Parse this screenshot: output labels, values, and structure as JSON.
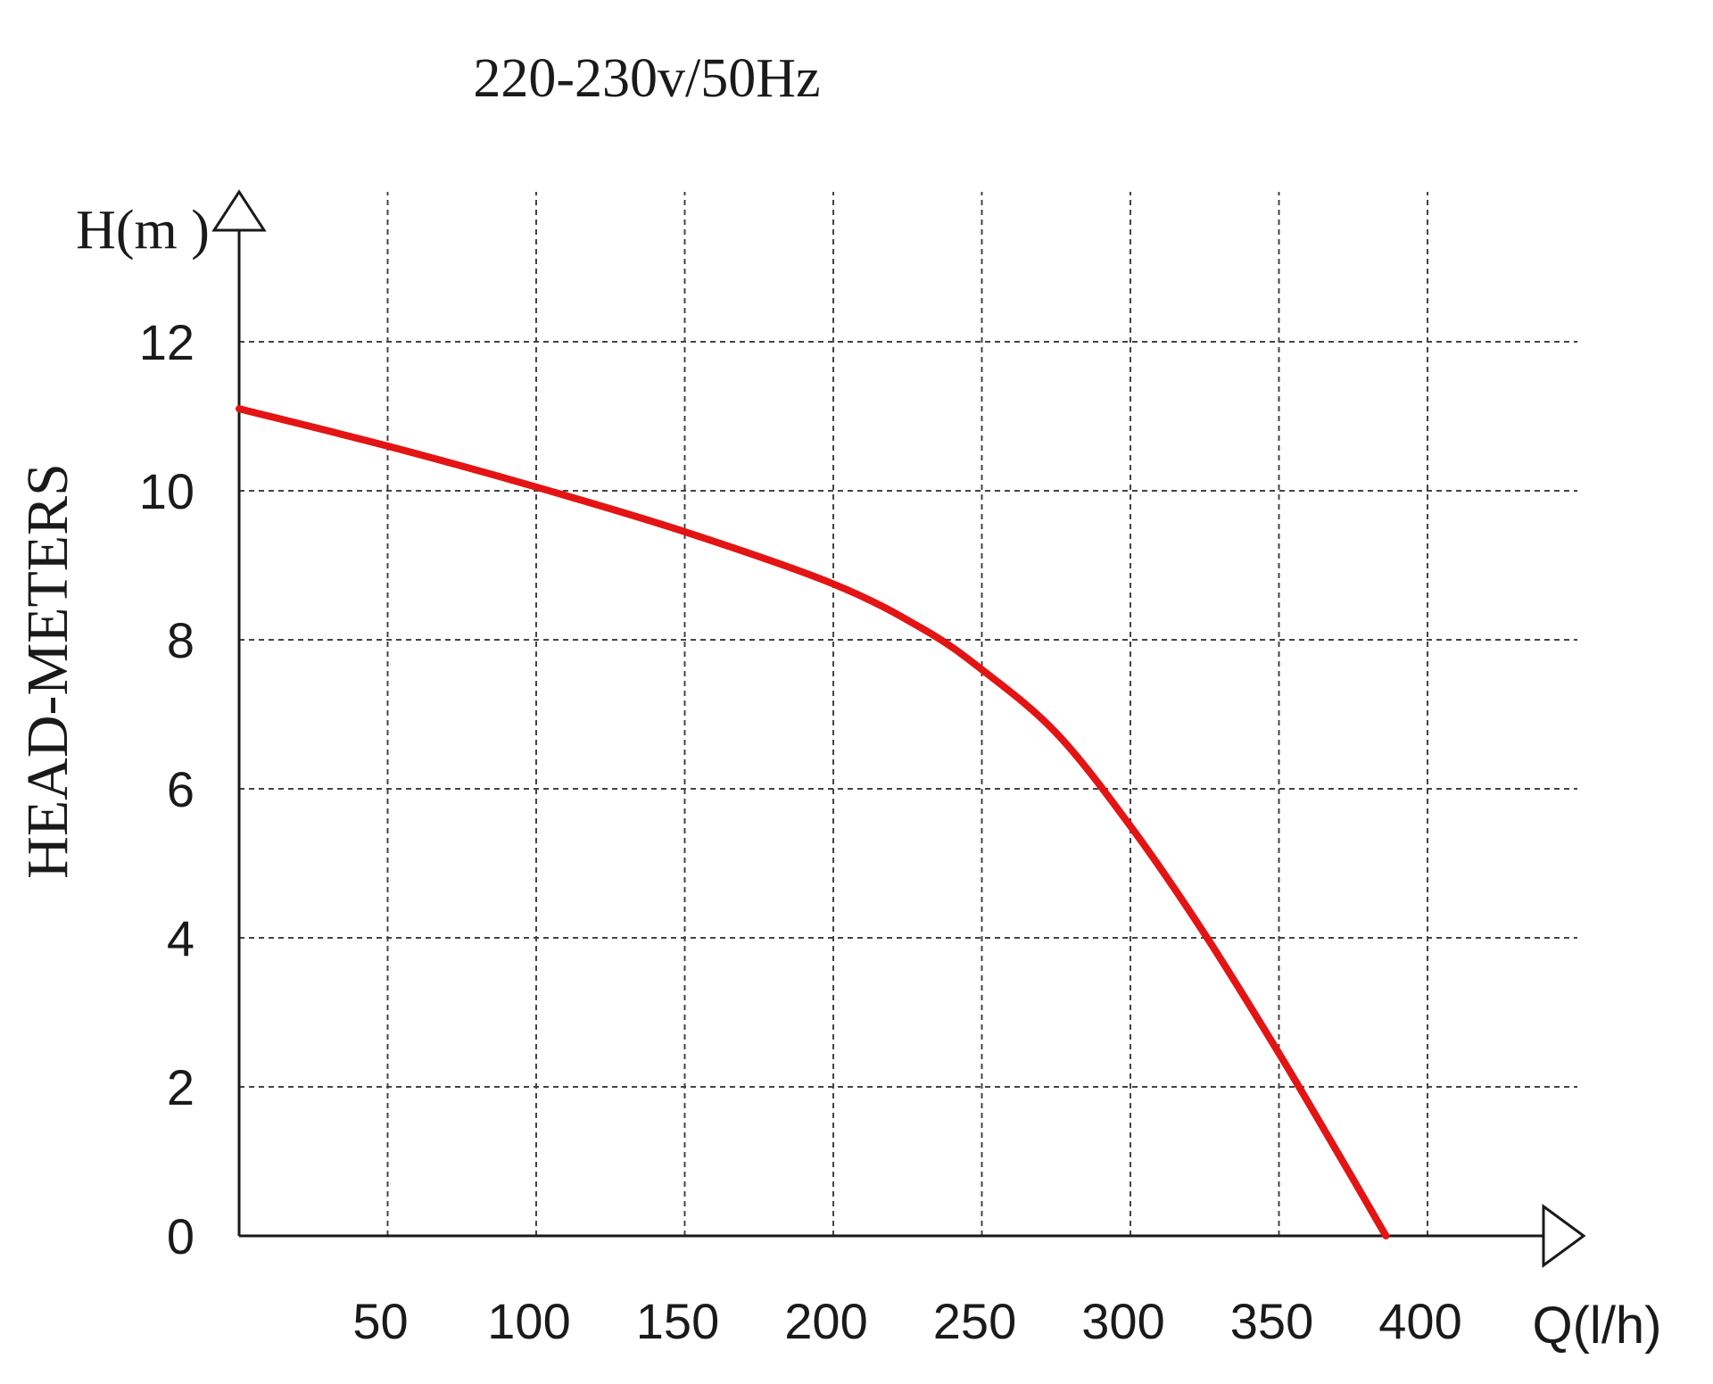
{
  "chart_data": {
    "type": "line",
    "title": "220-230v/50Hz",
    "ylabel": "HEAD-METERS",
    "y_axis_unit_label": "H(m )",
    "x_axis_unit_label": "Q(l/h)",
    "x_ticks": [
      "50",
      "100",
      "150",
      "200",
      "250",
      "300",
      "350",
      "400"
    ],
    "y_ticks": [
      "0",
      "2",
      "4",
      "6",
      "8",
      "10",
      "12"
    ],
    "xlim": [
      0,
      420
    ],
    "ylim": [
      0,
      12
    ],
    "grid": true,
    "series": [
      {
        "color": "#e41414",
        "points": [
          {
            "x": 0,
            "y": 11.1
          },
          {
            "x": 50,
            "y": 10.6
          },
          {
            "x": 100,
            "y": 10.05
          },
          {
            "x": 150,
            "y": 9.45
          },
          {
            "x": 200,
            "y": 8.75
          },
          {
            "x": 230,
            "y": 8.15
          },
          {
            "x": 250,
            "y": 7.6
          },
          {
            "x": 275,
            "y": 6.75
          },
          {
            "x": 300,
            "y": 5.5
          },
          {
            "x": 325,
            "y": 4.05
          },
          {
            "x": 350,
            "y": 2.45
          },
          {
            "x": 370,
            "y": 1.1
          },
          {
            "x": 386,
            "y": 0
          }
        ]
      }
    ]
  }
}
